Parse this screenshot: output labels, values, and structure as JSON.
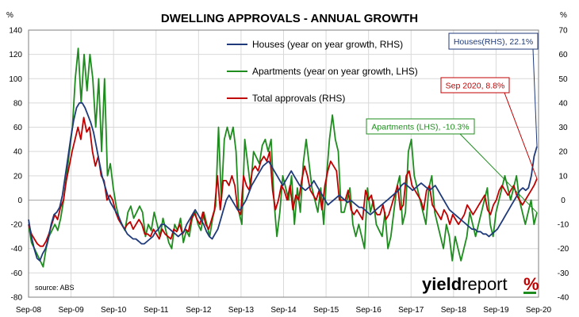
{
  "chart_data": {
    "type": "line",
    "title": "DWELLING APPROVALS - ANNUAL GROWTH",
    "left_axis": {
      "unit": "%",
      "min": -80,
      "max": 140,
      "step": 20,
      "ticks": [
        "-80",
        "-60",
        "-40",
        "-20",
        "0",
        "20",
        "40",
        "60",
        "80",
        "100",
        "120",
        "140"
      ]
    },
    "right_axis": {
      "unit": "%",
      "min": -40,
      "max": 70,
      "step": 10,
      "ticks": [
        "-40",
        "-30",
        "-20",
        "-10",
        "0",
        "10",
        "20",
        "30",
        "40",
        "50",
        "60",
        "70"
      ]
    },
    "x_axis": {
      "start": "Sep-08",
      "ticks": [
        "Sep-08",
        "Sep-09",
        "Sep-10",
        "Sep-11",
        "Sep-12",
        "Sep-13",
        "Sep-14",
        "Sep-15",
        "Sep-16",
        "Sep-17",
        "Sep-18",
        "Sep-19",
        "Sep-20"
      ]
    },
    "grid": true,
    "series": [
      {
        "name": "Houses (year on year growth, RHS)",
        "axis": "right",
        "color": "#1f3a7a",
        "values": [
          -8,
          -15,
          -20,
          -24,
          -25,
          -22,
          -20,
          -16,
          -10,
          -6,
          -5,
          -3,
          2,
          10,
          18,
          26,
          33,
          38,
          40,
          40,
          38,
          35,
          32,
          28,
          22,
          16,
          10,
          6,
          2,
          -1,
          -3,
          -5,
          -7,
          -10,
          -12,
          -14,
          -15,
          -16,
          -16,
          -17,
          -18,
          -18,
          -17,
          -16,
          -15,
          -13,
          -12,
          -10,
          -10,
          -11,
          -12,
          -13,
          -14,
          -15,
          -14,
          -13,
          -10,
          -8,
          -6,
          -4,
          -6,
          -8,
          -10,
          -13,
          -15,
          -16,
          -14,
          -12,
          -8,
          -4,
          0,
          2,
          0,
          -2,
          -4,
          -4,
          -2,
          0,
          3,
          6,
          8,
          10,
          12,
          14,
          15,
          16,
          14,
          12,
          10,
          8,
          6,
          8,
          10,
          12,
          10,
          8,
          6,
          5,
          4,
          5,
          6,
          8,
          6,
          4,
          2,
          0,
          -2,
          -1,
          0,
          1,
          2,
          1,
          0,
          -1,
          0,
          -1,
          -2,
          -3,
          -3,
          -4,
          -5,
          -6,
          -5,
          -4,
          -3,
          -2,
          -1,
          0,
          1,
          2,
          3,
          4,
          6,
          7,
          6,
          5,
          4,
          5,
          6,
          7,
          6,
          5,
          4,
          5,
          6,
          4,
          2,
          0,
          -2,
          -4,
          -5,
          -6,
          -7,
          -8,
          -9,
          -10,
          -11,
          -12,
          -12,
          -13,
          -13,
          -14,
          -14,
          -15,
          -14,
          -13,
          -12,
          -10,
          -8,
          -6,
          -4,
          -2,
          0,
          2,
          4,
          5,
          4,
          5,
          10,
          18,
          22.1
        ]
      },
      {
        "name": "Apartments (year on year growth, LHS)",
        "axis": "left",
        "color": "#1e8c1e",
        "values": [
          -20,
          -35,
          -40,
          -45,
          -50,
          -55,
          -40,
          -30,
          -25,
          -20,
          -25,
          -15,
          0,
          20,
          40,
          60,
          100,
          125,
          80,
          120,
          90,
          120,
          100,
          60,
          100,
          40,
          100,
          20,
          30,
          10,
          -5,
          -15,
          -20,
          -25,
          -10,
          -5,
          -15,
          -10,
          -5,
          -10,
          -30,
          -20,
          -25,
          -10,
          -20,
          -30,
          -15,
          -25,
          -35,
          -40,
          -20,
          -25,
          -15,
          -35,
          -25,
          -30,
          -15,
          -10,
          -20,
          -25,
          -10,
          -20,
          -30,
          -15,
          -5,
          60,
          0,
          50,
          60,
          50,
          60,
          40,
          -10,
          -20,
          50,
          30,
          10,
          40,
          35,
          30,
          45,
          50,
          40,
          50,
          0,
          -30,
          -10,
          20,
          10,
          0,
          20,
          -20,
          10,
          -10,
          30,
          50,
          30,
          10,
          0,
          -10,
          10,
          -20,
          20,
          50,
          70,
          50,
          40,
          -10,
          -10,
          0,
          10,
          -20,
          -30,
          -20,
          -30,
          -40,
          10,
          -10,
          0,
          -20,
          -25,
          -30,
          -10,
          -40,
          -30,
          -10,
          10,
          20,
          -20,
          -10,
          40,
          50,
          20,
          10,
          0,
          -10,
          -20,
          10,
          20,
          -10,
          -20,
          -30,
          -40,
          -20,
          -30,
          -50,
          -30,
          -40,
          -50,
          -40,
          -30,
          -10,
          -20,
          -30,
          -20,
          -10,
          0,
          10,
          -20,
          -30,
          -10,
          0,
          10,
          20,
          10,
          0,
          10,
          20,
          0,
          -10,
          -20,
          -10,
          0,
          -20,
          -10.3
        ]
      },
      {
        "name": "Total approvals (RHS)",
        "axis": "right",
        "color": "#c00000",
        "values": [
          -10,
          -14,
          -16,
          -18,
          -19,
          -19,
          -17,
          -14,
          -10,
          -6,
          -8,
          -3,
          0,
          8,
          14,
          20,
          25,
          30,
          25,
          34,
          28,
          30,
          20,
          14,
          18,
          10,
          8,
          0,
          2,
          0,
          -5,
          -8,
          -10,
          -12,
          -10,
          -9,
          -12,
          -10,
          -8,
          -10,
          -14,
          -14,
          -15,
          -12,
          -14,
          -16,
          -12,
          -14,
          -15,
          -16,
          -12,
          -13,
          -10,
          -14,
          -12,
          -13,
          -8,
          -5,
          -8,
          -10,
          -5,
          -10,
          -12,
          -8,
          -4,
          10,
          -4,
          8,
          8,
          6,
          10,
          6,
          -4,
          -6,
          10,
          6,
          4,
          12,
          14,
          12,
          16,
          18,
          16,
          20,
          4,
          -4,
          0,
          6,
          4,
          0,
          6,
          -4,
          2,
          0,
          8,
          14,
          10,
          4,
          2,
          0,
          4,
          -4,
          6,
          12,
          16,
          14,
          12,
          0,
          0,
          0,
          4,
          -4,
          -6,
          -4,
          -6,
          -8,
          4,
          0,
          2,
          -4,
          -6,
          -6,
          -2,
          -8,
          -6,
          -2,
          2,
          6,
          -4,
          -2,
          10,
          12,
          6,
          4,
          2,
          0,
          -4,
          4,
          6,
          -2,
          -4,
          -6,
          -8,
          -4,
          -6,
          -10,
          -6,
          -8,
          -10,
          -8,
          -6,
          -2,
          -4,
          -6,
          -4,
          -2,
          0,
          2,
          -4,
          -6,
          -2,
          0,
          4,
          6,
          4,
          2,
          4,
          6,
          2,
          0,
          -2,
          0,
          2,
          4,
          6,
          8.8
        ]
      }
    ],
    "legend": {
      "placement": "top-center",
      "items": [
        {
          "label": "Houses (year on year growth, RHS)",
          "color": "#1f3a7a"
        },
        {
          "label": "Apartments (year on year growth, LHS)",
          "color": "#1e8c1e"
        },
        {
          "label": "Total approvals (RHS)",
          "color": "#c00000"
        }
      ]
    },
    "annotations": [
      {
        "text": "Houses(RHS), 22.1%",
        "color": "#1f3a7a",
        "series": 0
      },
      {
        "text": "Sep 2020, 8.8%",
        "color": "#c00000",
        "series": 2
      },
      {
        "text": "Apartments (LHS), -10.3%",
        "color": "#1e8c1e",
        "series": 1
      }
    ],
    "source": "source: ABS"
  },
  "logo": {
    "word_bold": "yield",
    "word_light": "report",
    "symbol": "%",
    "symbol_color": "#c00000",
    "symbol_underline_color": "#1e8c1e"
  }
}
